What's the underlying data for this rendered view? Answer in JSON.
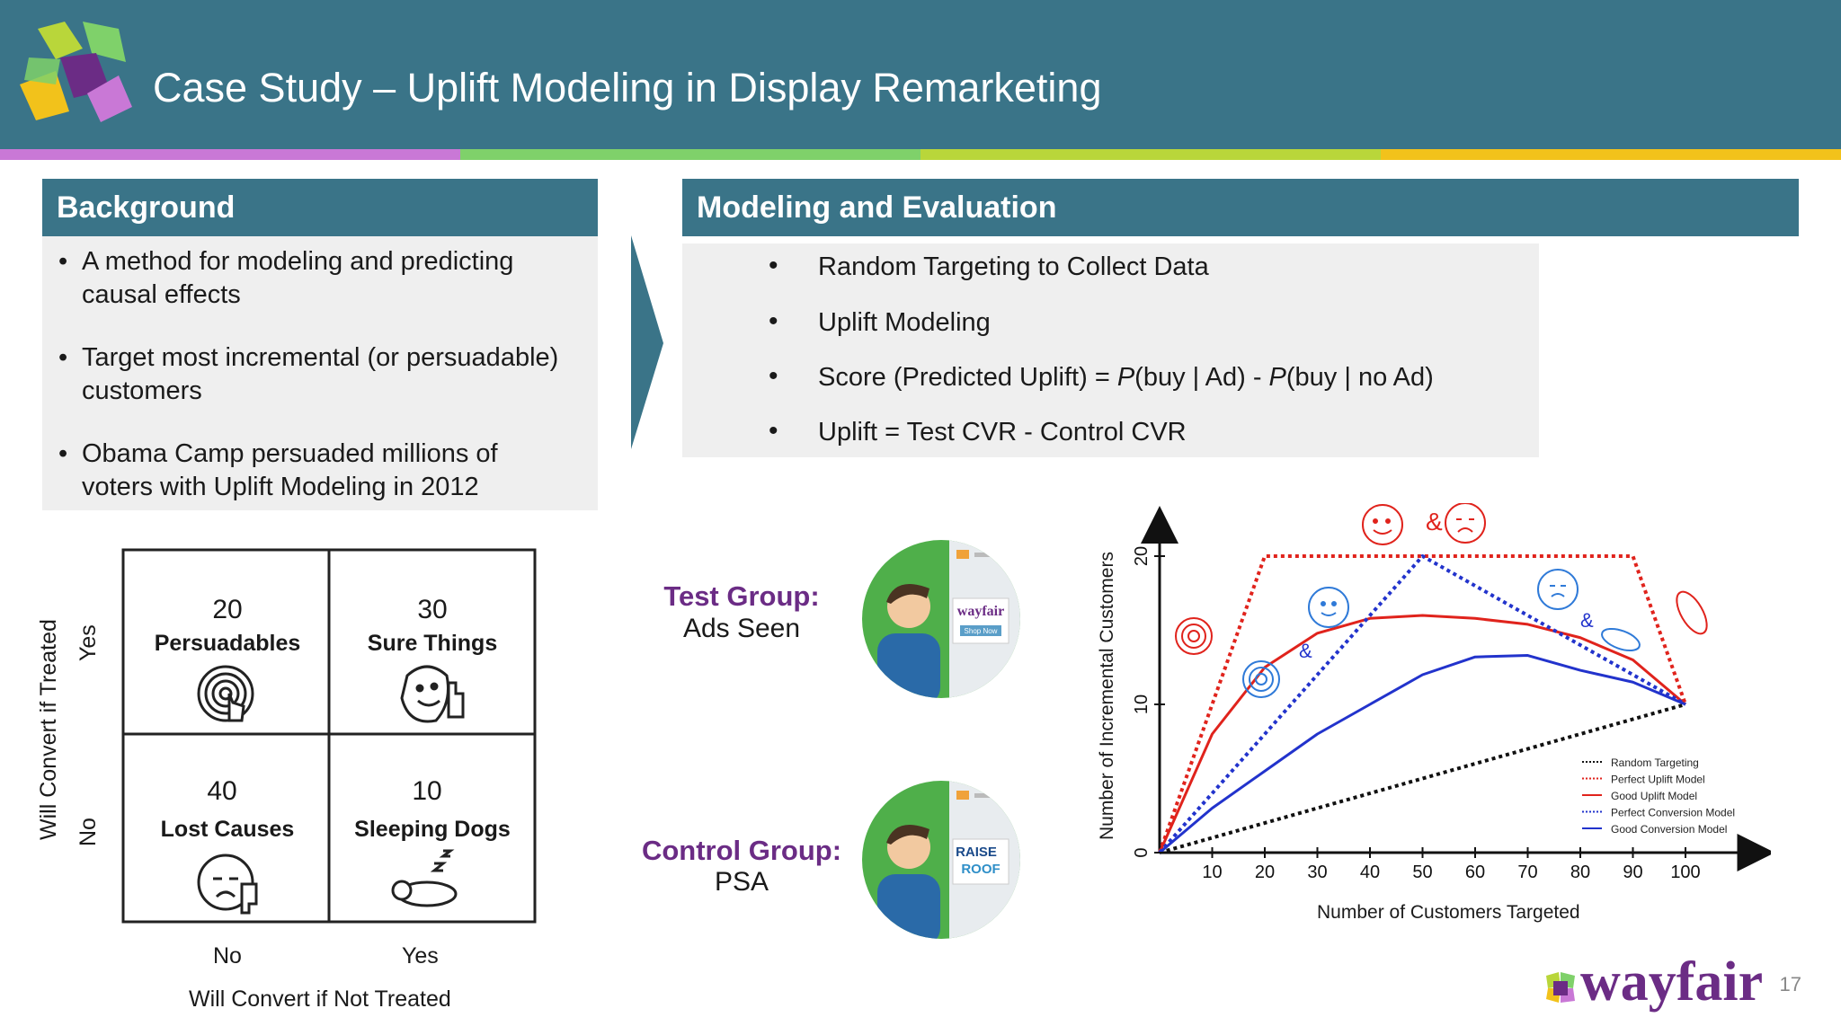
{
  "header": {
    "title": "Case Study – Uplift Modeling in Display Remarketing"
  },
  "colors": {
    "header_bg": "#3a7488",
    "stripe": [
      "#c978d6",
      "#7fd16a",
      "#b9d63a",
      "#f2c21b"
    ],
    "accent_purple": "#6b2c85"
  },
  "background": {
    "heading": "Background",
    "bullets": [
      {
        "line1": "A method for modeling and predicting",
        "line2": "causal effects"
      },
      {
        "line1": "Target most incremental (or persuadable)",
        "line2": "customers"
      },
      {
        "line1": "Obama Camp persuaded millions of",
        "line2": "voters with Uplift Modeling in 2012"
      }
    ]
  },
  "modeling": {
    "heading": "Modeling and Evaluation",
    "bullets": [
      {
        "text": "Random Targeting to Collect Data"
      },
      {
        "text": "Uplift Modeling"
      },
      {
        "pre": "Score (Predicted Uplift) = ",
        "p1": "P",
        "mid": "(buy | Ad) - ",
        "p2": "P",
        "post": "(buy | no Ad)"
      },
      {
        "text": "Uplift = Test CVR - Control CVR"
      }
    ]
  },
  "matrix": {
    "cells": [
      {
        "number": "20",
        "label": "Persuadables",
        "icon": "touch-target-icon"
      },
      {
        "number": "30",
        "label": "Sure Things",
        "icon": "thumbs-up-face-icon"
      },
      {
        "number": "40",
        "label": "Lost Causes",
        "icon": "thumbs-down-face-icon"
      },
      {
        "number": "10",
        "label": "Sleeping Dogs",
        "icon": "sleeping-dog-icon"
      }
    ],
    "y_axis_title": "Will Convert if Treated",
    "y_yes": "Yes",
    "y_no": "No",
    "x_no": "No",
    "x_yes": "Yes",
    "x_axis_title": "Will Convert if Not Treated"
  },
  "groups": {
    "test_title": "Test Group:",
    "test_sub": "Ads Seen",
    "control_title": "Control Group:",
    "control_sub": "PSA",
    "test_ad_text": "wayfair",
    "test_ad_btn": "Shop Now",
    "control_ad_line1": "RAISE",
    "control_ad_line2": "ROOF"
  },
  "chart_data": {
    "type": "line",
    "xlabel": "Number of Customers Targeted",
    "ylabel": "Number of Incremental Customers",
    "xlim": [
      0,
      110
    ],
    "ylim": [
      0,
      20
    ],
    "x_ticks": [
      10,
      20,
      30,
      40,
      50,
      60,
      70,
      80,
      90,
      100
    ],
    "y_ticks": [
      0,
      10,
      20
    ],
    "legend_position": "bottom-right",
    "series": [
      {
        "name": "Random Targeting",
        "style": "dotted",
        "color": "#111111",
        "x": [
          0,
          100
        ],
        "y": [
          0,
          10
        ]
      },
      {
        "name": "Perfect Uplift Model",
        "style": "dotted",
        "color": "#e0231c",
        "x": [
          0,
          20,
          90,
          100
        ],
        "y": [
          0,
          20,
          20,
          10
        ]
      },
      {
        "name": "Good Uplift Model",
        "style": "solid",
        "color": "#e0231c",
        "x": [
          0,
          10,
          20,
          30,
          40,
          50,
          60,
          70,
          80,
          90,
          100
        ],
        "y": [
          0,
          8,
          12.5,
          14.8,
          15.8,
          16,
          15.8,
          15.4,
          14.5,
          13,
          10
        ]
      },
      {
        "name": "Perfect Conversion Model",
        "style": "dotted",
        "color": "#2233cc",
        "x": [
          0,
          50,
          100
        ],
        "y": [
          0,
          20,
          10
        ]
      },
      {
        "name": "Good Conversion Model",
        "style": "solid",
        "color": "#2233cc",
        "x": [
          0,
          10,
          20,
          30,
          40,
          50,
          60,
          70,
          80,
          90,
          100
        ],
        "y": [
          0,
          3,
          5.5,
          8,
          10,
          12,
          13.2,
          13.3,
          12.3,
          11.5,
          10
        ]
      }
    ],
    "annotations": [
      "&",
      "&",
      "&"
    ]
  },
  "footer": {
    "brand": "wayfair",
    "page": "17"
  }
}
